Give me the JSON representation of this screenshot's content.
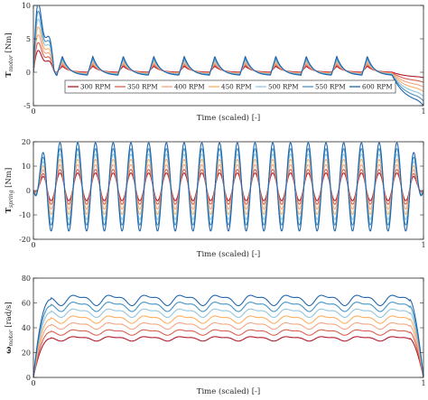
{
  "colors": [
    "#b2182b",
    "#d6604d",
    "#f4a582",
    "#fdae61",
    "#92c5de",
    "#4393c3",
    "#2166ac"
  ],
  "chart_data": [
    {
      "type": "line",
      "xlabel": "Time (scaled) [-]",
      "ylabel": {
        "main": "T",
        "sub": "motor",
        "unit": " [Nm]"
      },
      "xlim": [
        0,
        1
      ],
      "ylim": [
        -5,
        10
      ],
      "xticks": [
        0,
        1
      ],
      "yticks": [
        -5,
        0,
        5,
        10
      ],
      "grid": false,
      "legend": {
        "placement": "lower-center",
        "ncol": 7
      },
      "series": [
        {
          "name": "300 RPM",
          "rpm": 300
        },
        {
          "name": "350 RPM",
          "rpm": 350
        },
        {
          "name": "400 RPM",
          "rpm": 400
        },
        {
          "name": "450 RPM",
          "rpm": 450
        },
        {
          "name": "500 RPM",
          "rpm": 500
        },
        {
          "name": "550 RPM",
          "rpm": 550
        },
        {
          "name": "600 RPM",
          "rpm": 600
        }
      ],
      "pattern": {
        "cycles": 11,
        "start_peak": [
          3.0,
          9.5
        ],
        "cycle_peak": [
          0.9,
          2.4
        ],
        "cycle_min": [
          0.0,
          -0.5
        ],
        "end_min": [
          -0.8,
          -5.0
        ]
      }
    },
    {
      "type": "line",
      "xlabel": "Time (scaled) [-]",
      "ylabel": {
        "main": "T",
        "sub": "spring",
        "unit": " [Nm]"
      },
      "xlim": [
        0,
        1
      ],
      "ylim": [
        -20,
        20
      ],
      "xticks": [
        0,
        1
      ],
      "yticks": [
        -20,
        -10,
        0,
        10,
        20
      ],
      "grid": false,
      "series": [
        {
          "name": "300 RPM",
          "amplitude": 5.8
        },
        {
          "name": "350 RPM",
          "amplitude": 7.3
        },
        {
          "name": "400 RPM",
          "amplitude": 9.3
        },
        {
          "name": "450 RPM",
          "amplitude": 11.5
        },
        {
          "name": "500 RPM",
          "amplitude": 13.7
        },
        {
          "name": "550 RPM",
          "amplitude": 16.0
        },
        {
          "name": "600 RPM",
          "amplitude": 18.5
        }
      ],
      "pattern": {
        "cycles": 22,
        "offset": 1.5
      }
    },
    {
      "type": "line",
      "xlabel": "Time (scaled) [-]",
      "ylabel": {
        "main": "ω",
        "sub": "motor",
        "unit": " [rad/s]"
      },
      "xlim": [
        0,
        1
      ],
      "ylim": [
        0,
        80
      ],
      "xticks": [
        0,
        1
      ],
      "yticks": [
        0,
        20,
        40,
        60,
        80
      ],
      "grid": false,
      "series": [
        {
          "name": "300 RPM",
          "mean": 31.4
        },
        {
          "name": "350 RPM",
          "mean": 36.6
        },
        {
          "name": "400 RPM",
          "mean": 41.9
        },
        {
          "name": "450 RPM",
          "mean": 47.1
        },
        {
          "name": "500 RPM",
          "mean": 52.4
        },
        {
          "name": "550 RPM",
          "mean": 57.6
        },
        {
          "name": "600 RPM",
          "mean": 62.8
        }
      ],
      "pattern": {
        "ripple_cycles": 11,
        "ripple": [
          1.5,
          3.5
        ]
      }
    }
  ]
}
